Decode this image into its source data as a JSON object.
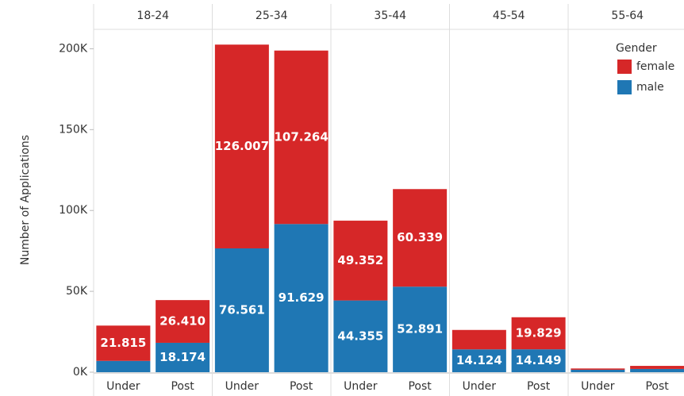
{
  "chart_data": {
    "type": "stacked-bar",
    "y_label": "Number of Applications",
    "groups": [
      "18-24",
      "25-34",
      "35-44",
      "45-54",
      "55-64"
    ],
    "categories": [
      "Under",
      "Post",
      "Under",
      "Post",
      "Under",
      "Post",
      "Under",
      "Post",
      "Under",
      "Post"
    ],
    "legend_title": "Gender",
    "legend_position": "upper right",
    "series": [
      {
        "name": "female",
        "color": "#d62728",
        "values": [
          21815,
          26410,
          126007,
          107264,
          49352,
          60339,
          12000,
          19829,
          800,
          1900
        ],
        "value_labels": [
          "21.815",
          "26.410",
          "126.007",
          "107.264",
          "49.352",
          "60.339",
          null,
          "19.829",
          null,
          null
        ]
      },
      {
        "name": "male",
        "color": "#1f77b4",
        "values": [
          7000,
          18174,
          76561,
          91629,
          44355,
          52891,
          14124,
          14149,
          1500,
          2000
        ],
        "value_labels": [
          null,
          "18.174",
          "76.561",
          "91.629",
          "44.355",
          "52.891",
          "14.124",
          "14.149",
          null,
          null
        ]
      }
    ],
    "ylim": [
      0,
      212000
    ],
    "yticks": [
      {
        "value": 0,
        "label": "0K"
      },
      {
        "value": 50000,
        "label": "50K"
      },
      {
        "value": 100000,
        "label": "100K"
      },
      {
        "value": 150000,
        "label": "150K"
      },
      {
        "value": 200000,
        "label": "200K"
      }
    ],
    "grid": false
  }
}
